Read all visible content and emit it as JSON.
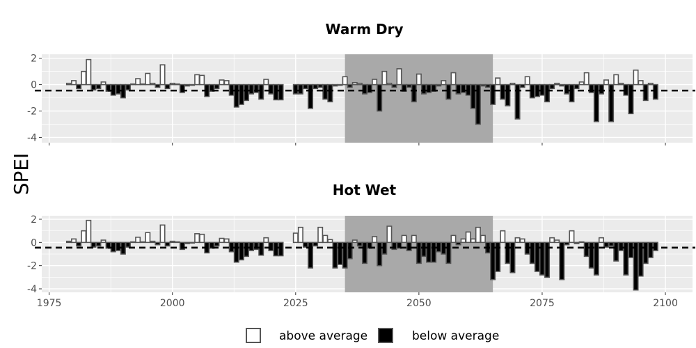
{
  "chart_data": {
    "type": "bar",
    "ylabel": "SPEI",
    "reference_line": -0.45,
    "x_ticks": [
      1975,
      2000,
      2025,
      2050,
      2075,
      2100
    ],
    "y_ticks": [
      -4,
      -2,
      0,
      2
    ],
    "shaded_period": [
      2035,
      2065
    ],
    "legend": {
      "position": "bottom",
      "items": [
        {
          "label": "above average",
          "fill": "#ffffff"
        },
        {
          "label": "below average",
          "fill": "#000000"
        }
      ]
    },
    "colors": {
      "panel_bg": "#ebebeb",
      "shade": "#a9a9a9",
      "grid": "#ffffff",
      "above_bar": "#ffffff",
      "below_bar": "#000000",
      "bar_edge": "#555555"
    },
    "panels": [
      {
        "title": "Warm Dry",
        "xlim": [
          1973.5,
          2105.5
        ],
        "ylim": [
          -4.4,
          2.3
        ],
        "show_x_labels": false,
        "segments": [
          {
            "start_year": 1979,
            "values": [
              0.1,
              0.3,
              -0.3,
              1.0,
              1.9,
              -0.4,
              -0.3,
              0.2,
              -0.5,
              -0.8,
              -0.7,
              -1.0,
              -0.4,
              0.05,
              0.45,
              0.05,
              0.85,
              0.1,
              -0.2,
              1.5,
              -0.3,
              0.1,
              0.05,
              -0.6,
              -0.1,
              -0.05,
              0.75,
              0.7,
              -0.9,
              -0.5,
              -0.3,
              0.35,
              0.3,
              -0.8,
              -1.7,
              -1.5,
              -1.2,
              -0.7,
              -0.6,
              -1.1,
              0.4,
              -0.7,
              -1.15,
              -1.15
            ]
          },
          {
            "start_year": 2025,
            "values": [
              -0.7,
              -0.7,
              -0.3,
              -1.8,
              -0.3,
              -0.2,
              -1.1,
              -1.3,
              -0.1,
              -0.05,
              0.6,
              -0.2,
              0.15,
              0.1,
              -0.7,
              -0.6,
              0.4,
              -2.0,
              1.0,
              0.1,
              -0.2,
              1.2,
              -0.5,
              -0.2,
              -1.3,
              0.8,
              -0.7,
              -0.6,
              -0.5,
              -0.1,
              0.3,
              -1.1,
              0.9,
              -0.7,
              -0.6,
              -0.8,
              -1.8,
              -3.0,
              -0.1,
              -0.2,
              -1.5,
              0.5,
              -1.1,
              -1.6,
              0.1,
              -2.6,
              -0.2,
              0.6,
              -1.0,
              -0.9,
              -0.8,
              -1.3,
              -0.3,
              0.1,
              -0.1,
              -0.7,
              -1.3,
              -0.3,
              0.2,
              0.9,
              -0.6,
              -2.8,
              -0.7,
              0.35,
              -2.8,
              0.75,
              0.1,
              -0.8,
              -2.2,
              1.1,
              0.3,
              -1.2,
              0.1,
              -1.1
            ]
          }
        ]
      },
      {
        "title": "Hot Wet",
        "xlim": [
          1973.5,
          2105.5
        ],
        "ylim": [
          -4.3,
          2.3
        ],
        "show_x_labels": true,
        "segments": [
          {
            "start_year": 1979,
            "values": [
              0.1,
              0.3,
              -0.3,
              1.0,
              1.9,
              -0.4,
              -0.3,
              0.2,
              -0.5,
              -0.8,
              -0.7,
              -1.0,
              -0.4,
              0.05,
              0.45,
              0.05,
              0.85,
              0.1,
              -0.2,
              1.5,
              -0.3,
              0.1,
              0.05,
              -0.6,
              -0.1,
              -0.05,
              0.75,
              0.7,
              -0.9,
              -0.5,
              -0.3,
              0.35,
              0.3,
              -0.8,
              -1.7,
              -1.5,
              -1.2,
              -0.7,
              -0.6,
              -1.1,
              0.4,
              -0.7,
              -1.15,
              -1.15
            ]
          },
          {
            "start_year": 2025,
            "values": [
              0.8,
              1.3,
              -0.4,
              -2.2,
              -0.3,
              1.3,
              0.6,
              0.25,
              -2.2,
              -1.9,
              -2.2,
              -1.4,
              0.2,
              -0.3,
              -1.8,
              -0.5,
              0.5,
              -2.0,
              -1.0,
              1.4,
              -0.6,
              -0.5,
              0.6,
              -0.7,
              0.6,
              -1.8,
              -1.2,
              -1.7,
              -1.7,
              -0.8,
              -1.0,
              -1.8,
              0.6,
              -0.2,
              0.3,
              0.9,
              0.3,
              1.3,
              0.6,
              -0.9,
              -3.2,
              -2.5,
              1.0,
              -1.8,
              -2.6,
              0.4,
              0.3,
              -1.0,
              -1.8,
              -2.5,
              -2.8,
              -3.0,
              0.4,
              0.2,
              -3.2,
              -0.2,
              1.0,
              -0.1,
              0.05,
              -1.2,
              -2.2,
              -2.8,
              0.4,
              -0.4,
              -0.3,
              -1.6,
              -0.7,
              -2.8,
              -1.3,
              -4.1,
              -2.9,
              -1.8,
              -1.3,
              -0.7
            ]
          }
        ]
      }
    ]
  }
}
